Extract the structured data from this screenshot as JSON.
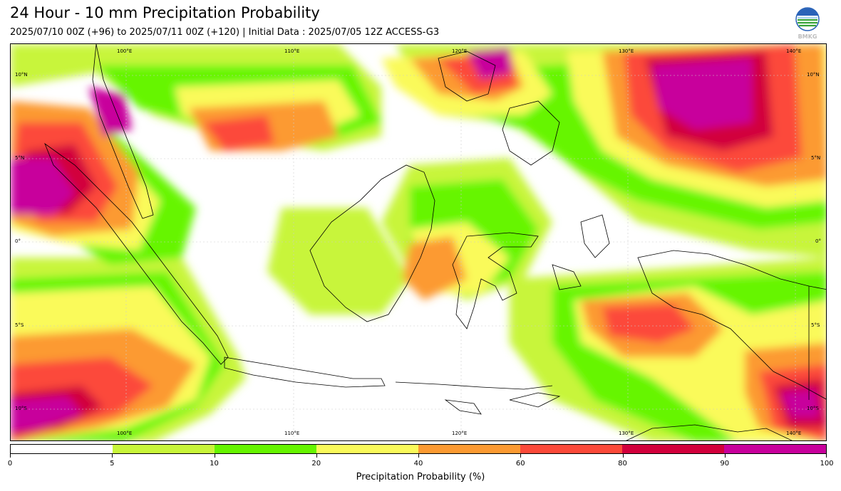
{
  "title": "24 Hour - 10 mm Precipitation Probability",
  "subtitle": "2025/07/10 00Z (+96) to 2025/07/11 00Z (+120) | Initial Data : 2025/07/05 12Z ACCESS-G3",
  "logo": {
    "text": "BMKG",
    "icon": "bmkg-logo-icon"
  },
  "map": {
    "region": "Indonesia",
    "lon_labels": [
      "100°E",
      "110°E",
      "120°E",
      "130°E",
      "140°E"
    ],
    "lat_labels": [
      "10°N",
      "5°N",
      "0°",
      "5°S",
      "10°S"
    ],
    "field": "precipitation probability"
  },
  "colorbar": {
    "label": "Precipitation Probability (%)",
    "ticks": [
      "0",
      "5",
      "10",
      "20",
      "40",
      "60",
      "80",
      "90",
      "100"
    ],
    "bins": [
      {
        "from": 0,
        "to": 5,
        "color": "#ffffff"
      },
      {
        "from": 5,
        "to": 10,
        "color": "#c8f53a"
      },
      {
        "from": 10,
        "to": 20,
        "color": "#66f500"
      },
      {
        "from": 20,
        "to": 40,
        "color": "#fafa5a"
      },
      {
        "from": 40,
        "to": 60,
        "color": "#fc9a32"
      },
      {
        "from": 60,
        "to": 80,
        "color": "#fc4a3a"
      },
      {
        "from": 80,
        "to": 90,
        "color": "#d2003c"
      },
      {
        "from": 90,
        "to": 100,
        "color": "#c8009c"
      }
    ]
  }
}
